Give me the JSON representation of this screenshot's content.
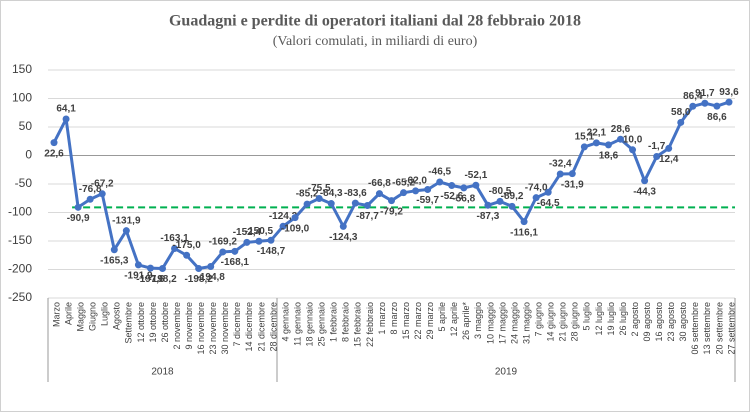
{
  "chart_data": {
    "type": "line",
    "title": "Guadagni e perdite di operatori italiani dal 28 febbraio 2018",
    "subtitle": "(Valori comulati, in miliardi di euro)",
    "categories": [
      "Marzo",
      "Aprile",
      "Maggio",
      "Giugno",
      "Luglio",
      "Agosto",
      "Settembre",
      "12 ottobre",
      "19 ottobre",
      "26 ottobre",
      "2 novembre",
      "9 novembre",
      "16 novembre",
      "23 novembre",
      "30 novembre",
      "7 dicembre",
      "14 dicembre",
      "21 dicembre",
      "28 dicembre",
      "4 gennaio",
      "11 gennaio",
      "18 gennaio",
      "25 gennaio",
      "1 febbraio",
      "8 febbraio",
      "15 febbraio",
      "22 febbraio",
      "1 marzo",
      "8 marzo",
      "15 marzo",
      "22 marzo",
      "29 marzo",
      "5 aprile",
      "12 aprile",
      "26 aprile*",
      "3 maggio",
      "10 maggio",
      "17 maggio",
      "24 maggio",
      "31 maggio",
      "7 giugno",
      "14 giugno",
      "21 giugno",
      "28 giugno",
      "5 luglio",
      "12 luglio",
      "19 luglio",
      "26 luglio",
      "2 agosto",
      "09 agosto",
      "16 agosto",
      "23 agosto",
      "30 agosto",
      "06 settembre",
      "13 settembre",
      "20 settembre",
      "27 settembre"
    ],
    "groups": [
      {
        "label": "2018",
        "count": 19
      },
      {
        "label": "2019",
        "count": 38
      }
    ],
    "series": [
      {
        "name": "Guadagni e perdite",
        "color": "#4472c4",
        "values": [
          22.6,
          64.1,
          -90.9,
          -76.8,
          -67.2,
          -165.3,
          -131.9,
          -191.9,
          -197.6,
          -198.2,
          -163.1,
          -175.0,
          -198.2,
          -194.8,
          -169.2,
          -168.1,
          -152.4,
          -150.5,
          -148.7,
          -124.2,
          -109.0,
          -85.2,
          -75.5,
          -84.3,
          -124.3,
          -83.6,
          -87.7,
          -66.8,
          -79.2,
          -65.2,
          -62.0,
          -59.7,
          -46.5,
          -52.6,
          -56.8,
          -52.1,
          -87.3,
          -80.5,
          -89.2,
          -116.1,
          -74.0,
          -64.5,
          -32.4,
          -31.9,
          15.1,
          22.1,
          18.6,
          28.6,
          10.0,
          -44.3,
          -1.7,
          12.4,
          58.0,
          86.4,
          91.7,
          86.6,
          93.6
        ],
        "value_labels": [
          "22,6",
          "64,1",
          "-90,9",
          "-76,8",
          "-67,2",
          "-165,3",
          "-131,9",
          "-191,9",
          "-197,6",
          "-198,2",
          "-163,1",
          "-175,0",
          "-198,2",
          "-194,8",
          "-169,2",
          "-168,1",
          "-152,4",
          "-150,5",
          "-148,7",
          "-124,2",
          "-109,0",
          "-85,2",
          "-75,5",
          "-84,3",
          "-124,3",
          "-83,6",
          "-87,7",
          "-66,8",
          "-79,2",
          "-65,2",
          "-62,0",
          "-59,7",
          "-46,5",
          "-52,6",
          "-56,8",
          "-52,1",
          "-87,3",
          "-80,5",
          "-89,2",
          "-116,1",
          "-74,0",
          "-64,5",
          "-32,4",
          "-31,9",
          "15,1",
          "22,1",
          "18,6",
          "28,6",
          "10,0",
          "-44,3",
          "-1,7",
          "12,4",
          "58,0",
          "86,4",
          "91,7",
          "86,6",
          "93,6"
        ]
      }
    ],
    "reference_line": {
      "value": -90.9,
      "color": "#00b050"
    },
    "ylim": [
      -250,
      150
    ],
    "yticks": [
      -250,
      -200,
      -150,
      -100,
      -50,
      0,
      50,
      100,
      150
    ],
    "grid": true
  }
}
